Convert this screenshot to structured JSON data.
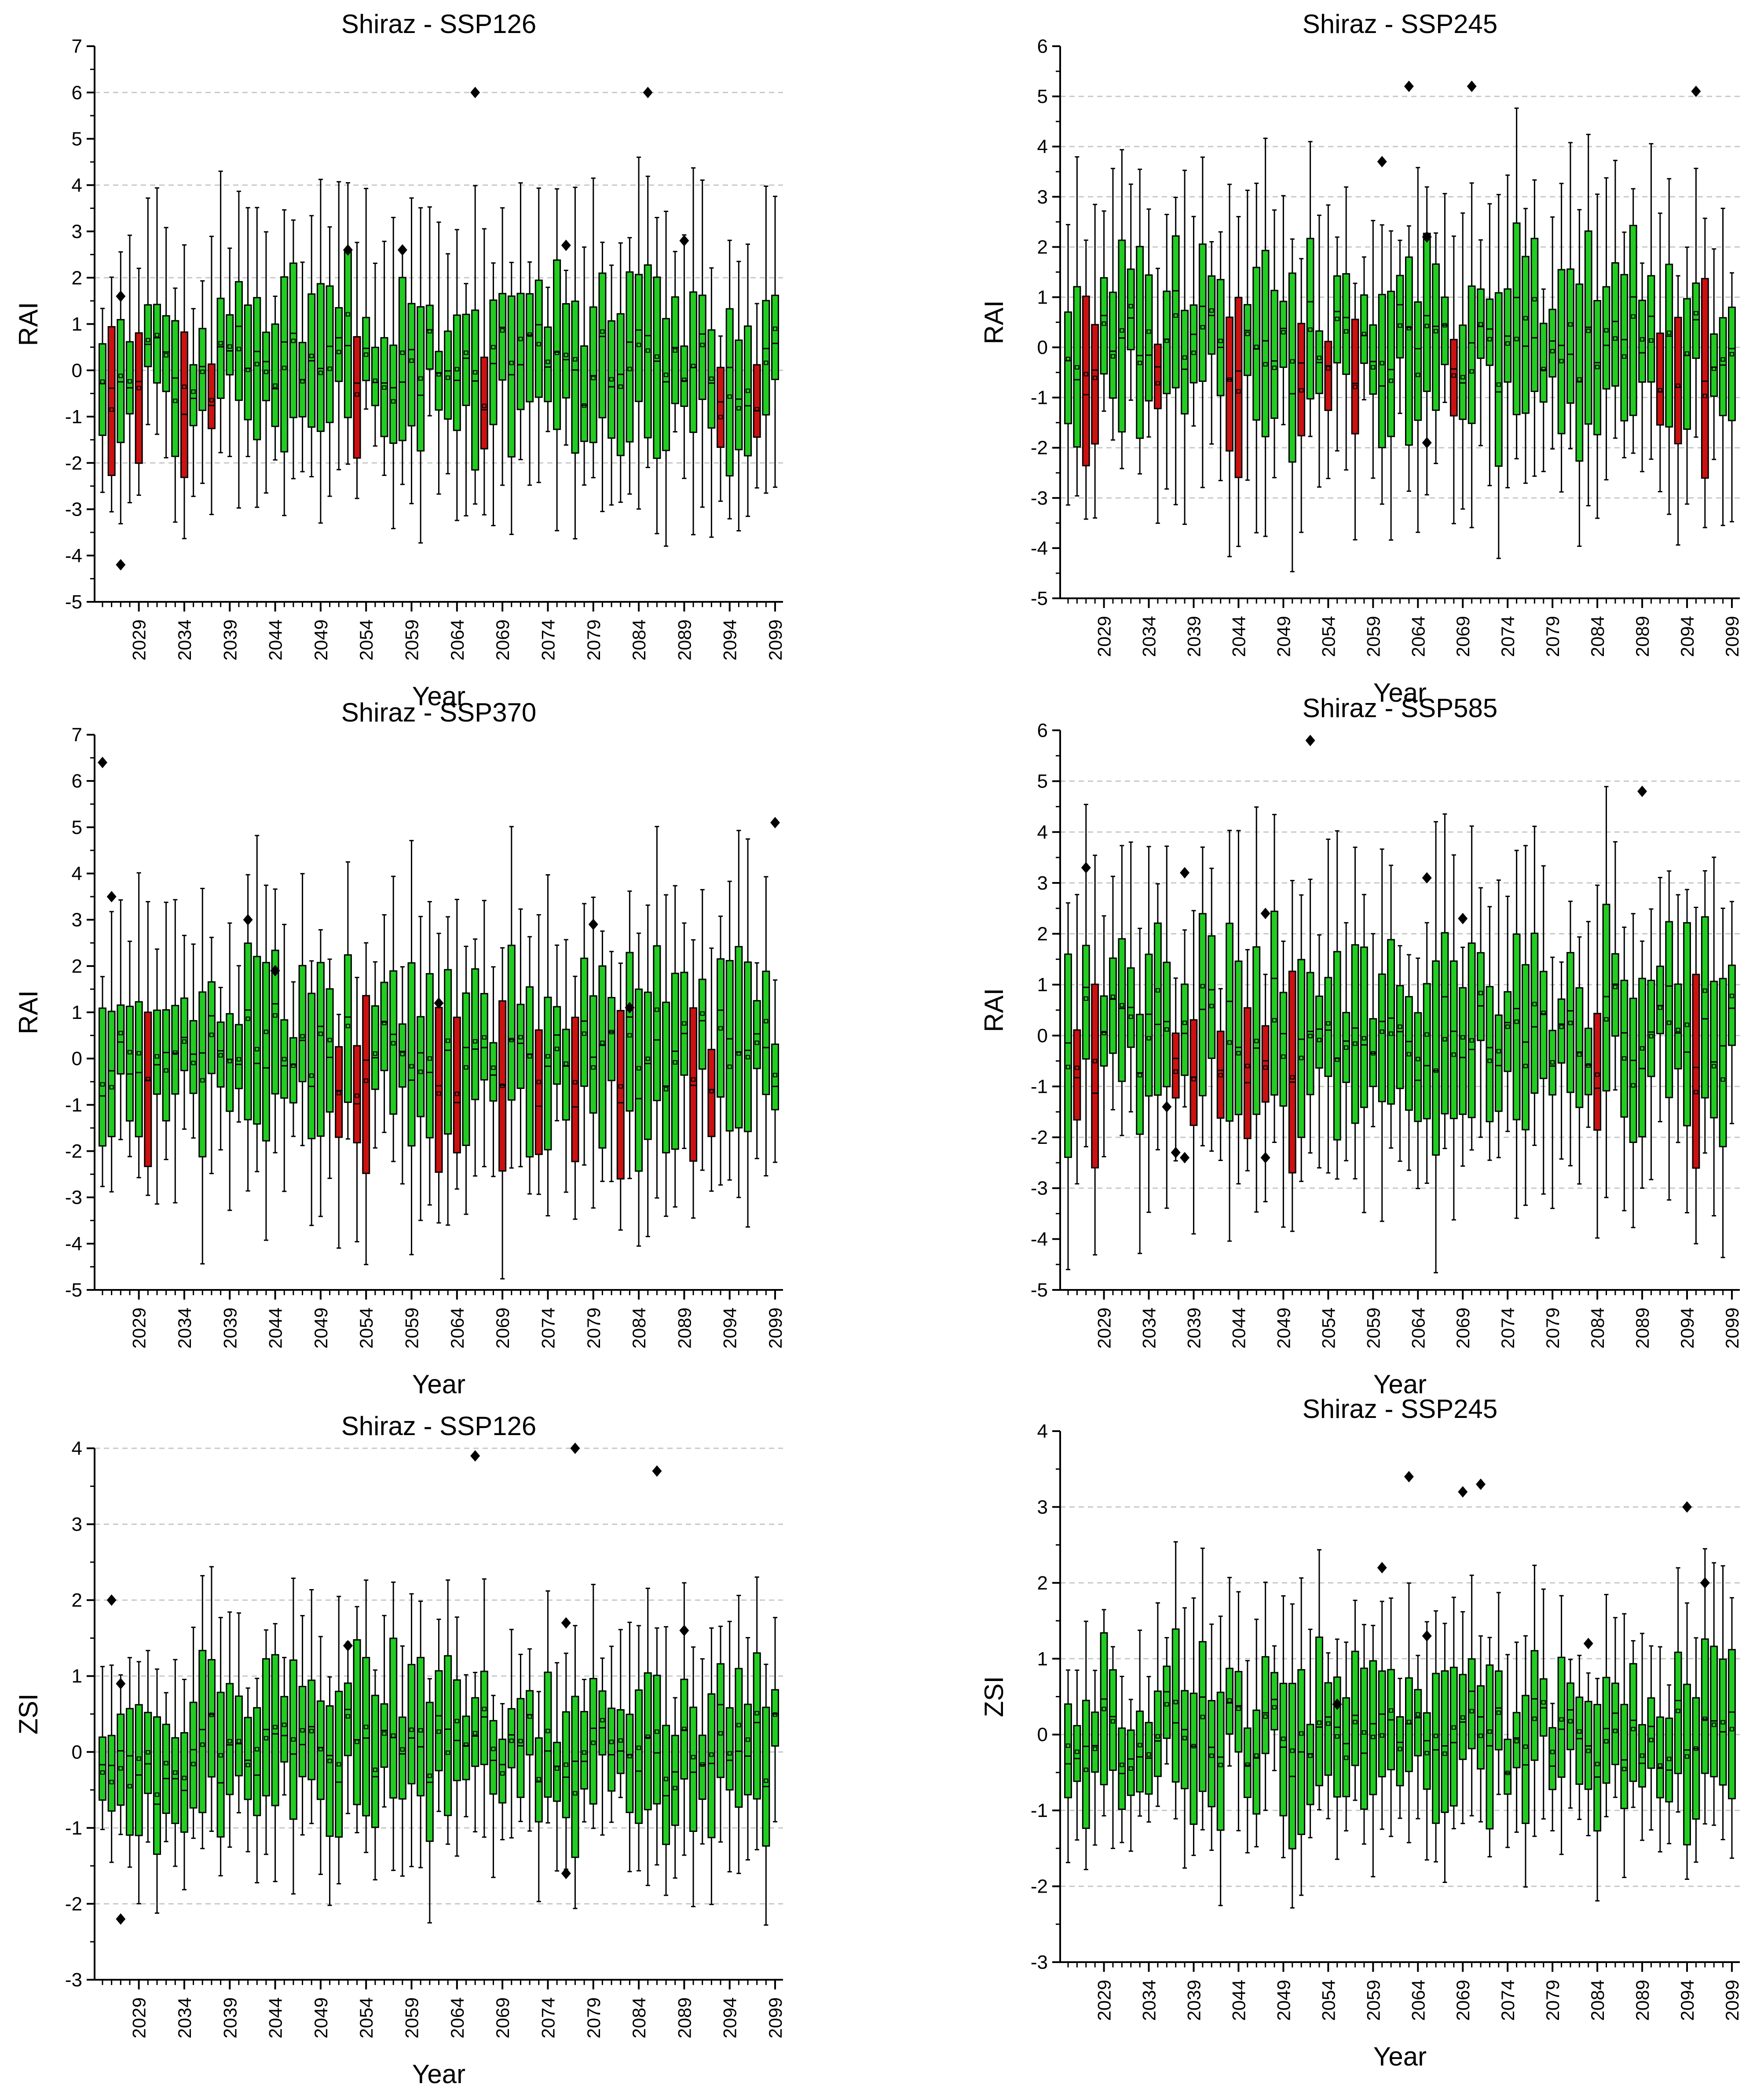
{
  "figure": {
    "xlabel": "Year",
    "x_tick_labels": [
      "2029",
      "2034",
      "2039",
      "2044",
      "2049",
      "2054",
      "2059",
      "2064",
      "2069",
      "2074",
      "2079",
      "2084",
      "2089",
      "2094",
      "2099"
    ],
    "colors": {
      "normal_box": "#22cc22",
      "deficit_box": "#cc1111",
      "outlier": "#000000",
      "grid": "#c8c8c8"
    }
  },
  "chart_data": [
    {
      "panel": "top-left",
      "type": "box",
      "title": "Shiraz - SSP126",
      "xlabel": "Year",
      "ylabel": "RAI",
      "ylim": [
        -5,
        7
      ],
      "y_ticks": [
        -5,
        -4,
        -3,
        -2,
        -1,
        0,
        1,
        2,
        3,
        4,
        5,
        6,
        7
      ],
      "grid_lines": [
        -2,
        0,
        2,
        4,
        6
      ],
      "x_range": [
        2025,
        2099
      ],
      "seed": 11,
      "outliers": [
        {
          "year": 2027,
          "value": 1.6
        },
        {
          "year": 2027,
          "value": -4.2
        },
        {
          "year": 2052,
          "value": 2.6
        },
        {
          "year": 2058,
          "value": 2.6
        },
        {
          "year": 2066,
          "value": 6.0
        },
        {
          "year": 2076,
          "value": 2.7
        },
        {
          "year": 2085,
          "value": 6.0
        },
        {
          "year": 2089,
          "value": 2.8
        }
      ]
    },
    {
      "panel": "top-right",
      "type": "box",
      "title": "Shiraz - SSP245",
      "xlabel": "Year",
      "ylabel": "RAI",
      "ylim": [
        -5,
        6
      ],
      "y_ticks": [
        -5,
        -4,
        -3,
        -2,
        -1,
        0,
        1,
        2,
        3,
        4,
        5,
        6
      ],
      "grid_lines": [
        -3,
        -2,
        -1,
        0,
        1,
        2,
        3,
        4,
        5
      ],
      "x_range": [
        2025,
        2099
      ],
      "seed": 23,
      "outliers": [
        {
          "year": 2060,
          "value": 3.7
        },
        {
          "year": 2063,
          "value": 5.2
        },
        {
          "year": 2065,
          "value": 2.2
        },
        {
          "year": 2065,
          "value": -1.9
        },
        {
          "year": 2070,
          "value": 5.2
        },
        {
          "year": 2095,
          "value": 5.1
        }
      ]
    },
    {
      "panel": "middle-left",
      "type": "box",
      "title": "Shiraz - SSP370",
      "xlabel": "Year",
      "ylabel": "RAI",
      "ylim": [
        -5,
        7
      ],
      "y_ticks": [
        -5,
        -4,
        -3,
        -2,
        -1,
        0,
        1,
        2,
        3,
        4,
        5,
        6,
        7
      ],
      "grid_lines": [],
      "x_range": [
        2025,
        2099
      ],
      "seed": 37,
      "outliers": [
        {
          "year": 2025,
          "value": 6.4
        },
        {
          "year": 2026,
          "value": 3.5
        },
        {
          "year": 2041,
          "value": 3.0
        },
        {
          "year": 2044,
          "value": 1.9
        },
        {
          "year": 2062,
          "value": 1.2
        },
        {
          "year": 2079,
          "value": 2.9
        },
        {
          "year": 2083,
          "value": 1.1
        },
        {
          "year": 2099,
          "value": 5.1
        }
      ]
    },
    {
      "panel": "middle-right",
      "type": "box",
      "title": "Shiraz - SSP585",
      "xlabel": "Year",
      "ylabel": "RAI",
      "ylim": [
        -5,
        6
      ],
      "y_ticks": [
        -5,
        -4,
        -3,
        -2,
        -1,
        0,
        1,
        2,
        3,
        4,
        5,
        6
      ],
      "grid_lines": [
        -3,
        -2,
        -1,
        0,
        1,
        2,
        3,
        4,
        5
      ],
      "x_range": [
        2025,
        2099
      ],
      "seed": 41,
      "outliers": [
        {
          "year": 2027,
          "value": 3.3
        },
        {
          "year": 2036,
          "value": -1.4
        },
        {
          "year": 2037,
          "value": -2.3
        },
        {
          "year": 2038,
          "value": 3.2
        },
        {
          "year": 2038,
          "value": -2.4
        },
        {
          "year": 2047,
          "value": 2.4
        },
        {
          "year": 2047,
          "value": -2.4
        },
        {
          "year": 2052,
          "value": 5.8
        },
        {
          "year": 2065,
          "value": 3.1
        },
        {
          "year": 2069,
          "value": 2.3
        },
        {
          "year": 2089,
          "value": 4.8
        }
      ]
    },
    {
      "panel": "bottom-left",
      "type": "box",
      "title": "Shiraz - SSP126",
      "xlabel": "Year",
      "ylabel": "ZSI",
      "ylim": [
        -3,
        4
      ],
      "y_ticks": [
        -3,
        -2,
        -1,
        0,
        1,
        2,
        3,
        4
      ],
      "grid_lines": [
        -2,
        -1,
        0,
        1,
        2,
        3,
        4
      ],
      "x_range": [
        2025,
        2099
      ],
      "seed": 53,
      "outliers": [
        {
          "year": 2026,
          "value": 2.0
        },
        {
          "year": 2027,
          "value": 0.9
        },
        {
          "year": 2027,
          "value": -2.2
        },
        {
          "year": 2052,
          "value": 1.4
        },
        {
          "year": 2066,
          "value": 3.9
        },
        {
          "year": 2076,
          "value": 1.7
        },
        {
          "year": 2076,
          "value": -1.6
        },
        {
          "year": 2077,
          "value": 4.0
        },
        {
          "year": 2086,
          "value": 3.7
        },
        {
          "year": 2089,
          "value": 1.6
        }
      ]
    },
    {
      "panel": "bottom-right",
      "type": "box",
      "title": "Shiraz - SSP245",
      "xlabel": "Year",
      "ylabel": "ZSI",
      "ylim": [
        -3,
        4
      ],
      "y_ticks": [
        -3,
        -2,
        -1,
        0,
        1,
        2,
        3,
        4
      ],
      "grid_lines": [
        -2,
        -1,
        0,
        1,
        2,
        3
      ],
      "x_range": [
        2025,
        2099
      ],
      "seed": 67,
      "outliers": [
        {
          "year": 2055,
          "value": 0.4
        },
        {
          "year": 2060,
          "value": 2.2
        },
        {
          "year": 2063,
          "value": 3.4
        },
        {
          "year": 2065,
          "value": 1.3
        },
        {
          "year": 2069,
          "value": 3.2
        },
        {
          "year": 2071,
          "value": 3.3
        },
        {
          "year": 2083,
          "value": 1.2
        },
        {
          "year": 2094,
          "value": 3.0
        },
        {
          "year": 2096,
          "value": 2.0
        }
      ]
    }
  ]
}
